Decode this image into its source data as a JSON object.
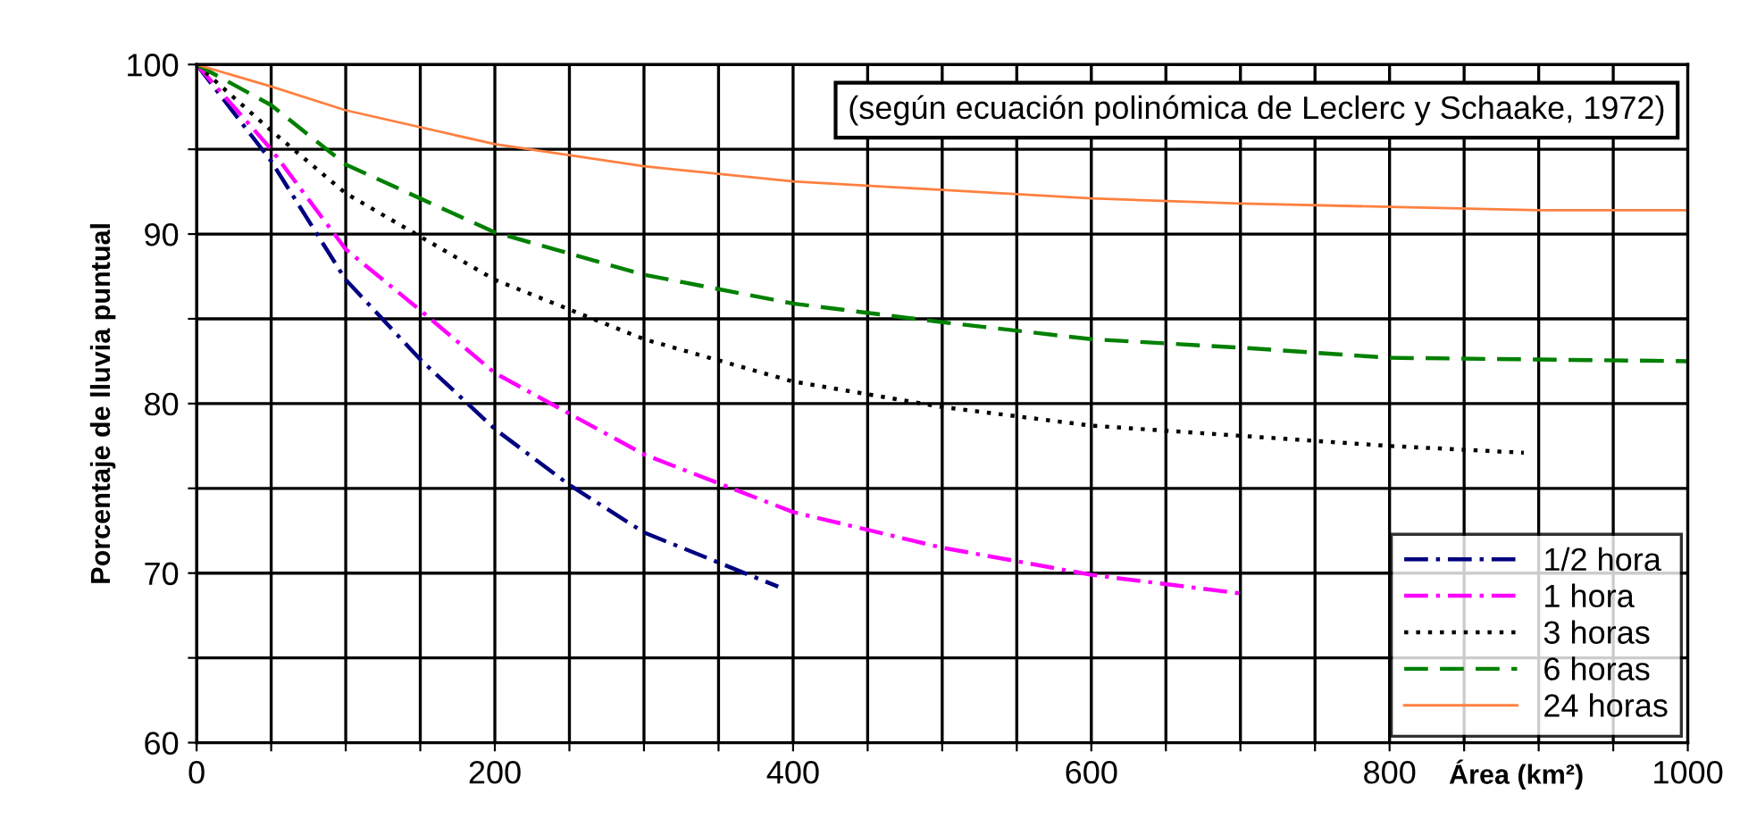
{
  "chart_data": {
    "type": "line",
    "xlabel": "Área (km²)",
    "ylabel": "Porcentaje de lluvia puntual",
    "annotations": [
      "(según ecuación polinómica de Leclerc y Schaake, 1972)"
    ],
    "xlim": [
      0,
      1000
    ],
    "ylim": [
      60,
      100
    ],
    "xticks": [
      0,
      {
        "value": 50,
        "label": null
      },
      {
        "value": 100,
        "label": null
      },
      {
        "value": 150,
        "label": null
      },
      200,
      {
        "value": 250,
        "label": null
      },
      {
        "value": 300,
        "label": null
      },
      {
        "value": 350,
        "label": null
      },
      400,
      {
        "value": 450,
        "label": null
      },
      {
        "value": 500,
        "label": null
      },
      {
        "value": 550,
        "label": null
      },
      600,
      {
        "value": 650,
        "label": null
      },
      {
        "value": 700,
        "label": null
      },
      {
        "value": 750,
        "label": null
      },
      800,
      {
        "value": 850,
        "label": null
      },
      {
        "value": 900,
        "label": null
      },
      {
        "value": 950,
        "label": null
      },
      1000
    ],
    "yticks": [
      60,
      {
        "value": 65,
        "label": null
      },
      70,
      {
        "value": 75,
        "label": null
      },
      80,
      {
        "value": 85,
        "label": null
      },
      90,
      {
        "value": 95,
        "label": null
      },
      100
    ],
    "grid": true,
    "legend": "bottom right",
    "marker": "none",
    "series": [
      {
        "name": "1/2 hora",
        "color": "#000080",
        "line_style": "dashdot",
        "x": [
          0,
          50,
          100,
          150,
          200,
          250,
          300,
          390
        ],
        "values": [
          100,
          94.3,
          87.3,
          82.6,
          78.5,
          75.2,
          72.4,
          69.2
        ]
      },
      {
        "name": "1 hora",
        "color": "#ff00ff",
        "line_style": "dashdot",
        "x": [
          0,
          50,
          100,
          150,
          200,
          300,
          400,
          500,
          600,
          700
        ],
        "values": [
          100,
          95.0,
          89.1,
          85.5,
          81.8,
          77.0,
          73.6,
          71.5,
          69.9,
          68.8
        ]
      },
      {
        "name": "3 horas",
        "color": "#000000",
        "line_style": "dotted",
        "x": [
          0,
          50,
          100,
          200,
          300,
          400,
          500,
          600,
          700,
          800,
          890
        ],
        "values": [
          100,
          96.1,
          92.4,
          87.3,
          83.8,
          81.3,
          79.8,
          78.7,
          78.1,
          77.5,
          77.1
        ]
      },
      {
        "name": "6 horas",
        "color": "#008000",
        "line_style": "dashed",
        "x": [
          0,
          50,
          100,
          200,
          300,
          400,
          500,
          600,
          700,
          800,
          900,
          1000
        ],
        "values": [
          100,
          97.6,
          94.1,
          90.1,
          87.6,
          85.9,
          84.8,
          83.8,
          83.3,
          82.7,
          82.6,
          82.5
        ]
      },
      {
        "name": "24 horas",
        "color": "#ff8040",
        "line_style": "solid",
        "x": [
          0,
          50,
          100,
          200,
          300,
          400,
          500,
          600,
          700,
          800,
          900,
          1000
        ],
        "values": [
          100,
          98.7,
          97.3,
          95.3,
          94.0,
          93.1,
          92.6,
          92.1,
          91.8,
          91.6,
          91.4,
          91.4
        ]
      }
    ]
  }
}
